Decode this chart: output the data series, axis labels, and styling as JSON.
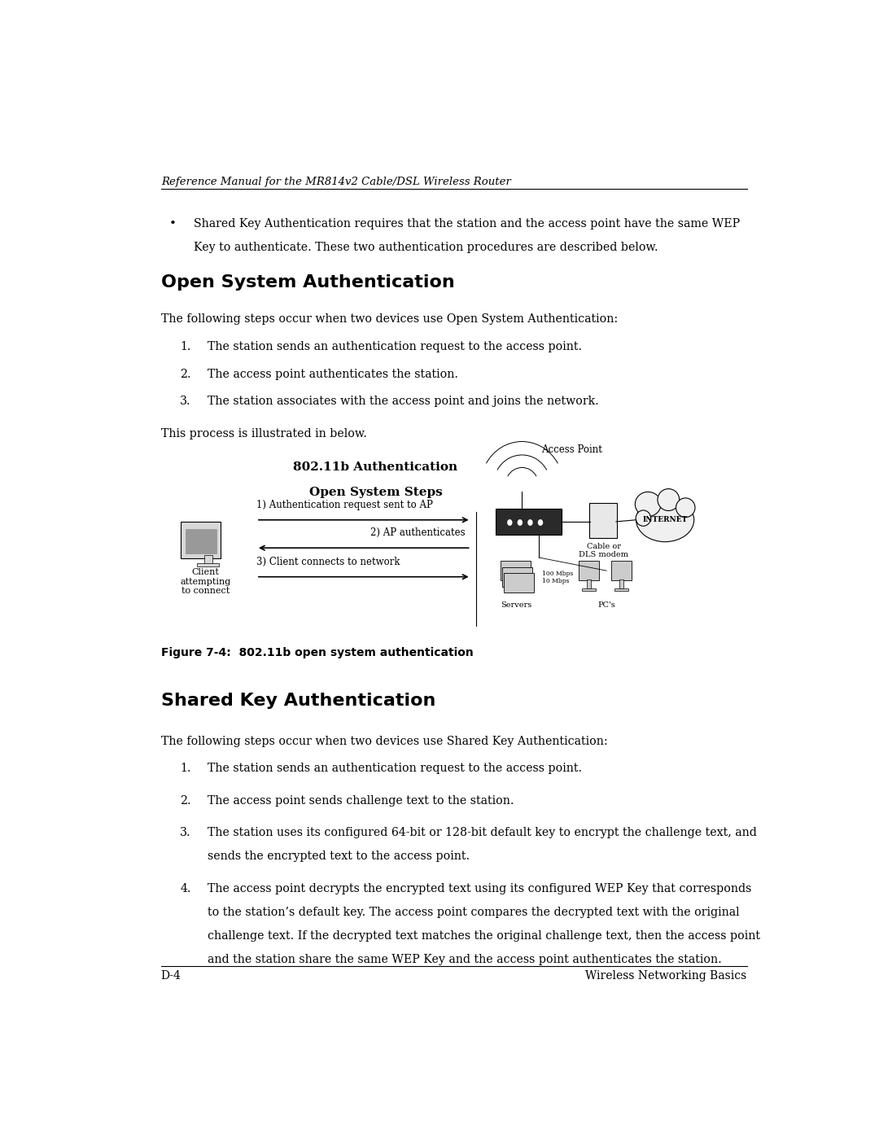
{
  "bg_color": "#ffffff",
  "text_color": "#000000",
  "header_italic": "Reference Manual for the MR814v2 Cable/DSL Wireless Router",
  "bullet_text_line1": "Shared Key Authentication requires that the station and the access point have the same WEP",
  "bullet_text_line2": "Key to authenticate. These two authentication procedures are described below.",
  "section1_title": "Open System Authentication",
  "section1_intro": "The following steps occur when two devices use Open System Authentication:",
  "section1_steps": [
    "The station sends an authentication request to the access point.",
    "The access point authenticates the station.",
    "The station associates with the access point and joins the network."
  ],
  "section1_process": "This process is illustrated in below.",
  "diagram_title1": "802.11b Authentication",
  "diagram_title2": "Open System Steps",
  "diagram_step1": "1) Authentication request sent to AP",
  "diagram_step2": "2) AP authenticates",
  "diagram_step3": "3) Client connects to network",
  "diagram_client_label": "Client\nattempting\nto connect",
  "diagram_ap_label": "Access Point",
  "diagram_cable_label": "Cable or\nDLS modem",
  "diagram_internet_label": "INTERNET",
  "diagram_servers_label": "Servers",
  "diagram_pcs_label": "PC's",
  "diagram_speed1": "100 Mbps",
  "diagram_speed2": "10 Mbps",
  "figure_caption": "Figure 7-4:  802.11b open system authentication",
  "section2_title": "Shared Key Authentication",
  "section2_intro": "The following steps occur when two devices use Shared Key Authentication:",
  "section2_steps": [
    "The station sends an authentication request to the access point.",
    "The access point sends challenge text to the station.",
    "The station uses its configured 64-bit or 128-bit default key to encrypt the challenge text, and\nsends the encrypted text to the access point.",
    "The access point decrypts the encrypted text using its configured WEP Key that corresponds\nto the station’s default key. The access point compares the decrypted text with the original\nchallenge text. If the decrypted text matches the original challenge text, then the access point\nand the station share the same WEP Key and the access point authenticates the station."
  ],
  "footer_left": "D-4",
  "footer_right": "Wireless Networking Basics"
}
